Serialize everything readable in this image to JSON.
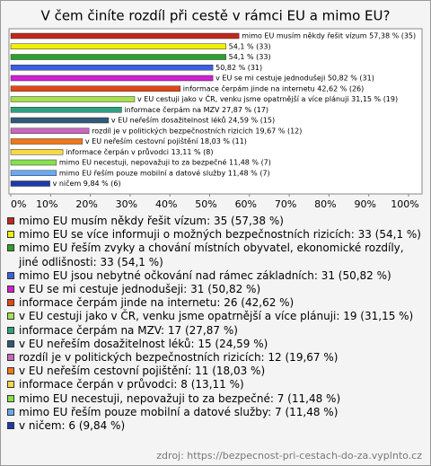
{
  "chart_data": {
    "type": "barh",
    "title": "V čem činíte rozdíl při cestě v rámci EU a mimo EU?",
    "values": [
      57.38,
      54.1,
      54.1,
      50.82,
      50.82,
      42.62,
      31.15,
      27.87,
      24.59,
      19.67,
      18.03,
      13.11,
      11.48,
      11.48,
      9.84
    ],
    "value_labels": [
      "mimo EU musím někdy řešit vízum 57,38 % (35)",
      "54,1 % (33)",
      "54,1 % (33)",
      "50,82 % (31)",
      "v EU se mi cestuje jednodušeji 50,82 % (31)",
      "informace čerpám jinde na internetu 42,62 % (26)",
      "v EU cestuji jako v ČR, venku jsme opatrnější a více plánuji 31,15 % (19)",
      "informace čerpám na MZV 27,87 % (17)",
      "v EU neřeším dosažitelnost léků 24,59 % (15)",
      "rozdíl je v politických bezpečnostních rizicích 19,67 % (12)",
      "v EU neřeším cestovní pojištění 18,03 % (11)",
      "informace čerpán v průvodci 13,11 % (8)",
      "mimo EU necestuji, nepovažuji to za bezpečné 11,48 % (7)",
      "mimo EU řeším pouze mobilní a datové služby 11,48 % (7)",
      "v ničem 9,84 % (6)"
    ],
    "colors": [
      "#c0281c",
      "#f0f000",
      "#2ca02c",
      "#3a5fe0",
      "#d020d0",
      "#e04818",
      "#a8e050",
      "#30a080",
      "#305a78",
      "#c868c0",
      "#f07818",
      "#f8d848",
      "#88e050",
      "#6aa8f0",
      "#2038a8"
    ],
    "xlim": [
      0,
      100
    ],
    "xticks": [
      {
        "value": 0,
        "label": "0%"
      },
      {
        "value": 10,
        "label": "10%"
      },
      {
        "value": 20,
        "label": "20%"
      },
      {
        "value": 30,
        "label": "30%"
      },
      {
        "value": 40,
        "label": "40%"
      },
      {
        "value": 50,
        "label": "50%"
      },
      {
        "value": 60,
        "label": "60%"
      },
      {
        "value": 70,
        "label": "70%"
      },
      {
        "value": 80,
        "label": "80%"
      },
      {
        "value": 90,
        "label": "90%"
      },
      {
        "value": 100,
        "label": "100%"
      }
    ],
    "legend": [
      "mimo EU musím někdy řešit vízum: 35 (57,38 %)",
      "mimo EU se více informuji o možných bezpečnostních rizicích: 33 (54,1 %)",
      "mimo EU řeším zvyky a chování místních obyvatel, ekonomické rozdíly, jiné odlišnosti: 33 (54,1 %)",
      "mimo EU jsou nebytné očkování nad rámec základních: 31 (50,82 %)",
      "v EU se mi cestuje jednodušeji: 31 (50,82 %)",
      "informace čerpám jinde na internetu: 26 (42,62 %)",
      "v EU cestuji jako v ČR, venku jsme opatrnější a více plánuji: 19 (31,15 %)",
      "informace čerpám na MZV: 17 (27,87 %)",
      "v EU neřeším dosažitelnost léků: 15 (24,59 %)",
      "rozdíl je v politických bezpečnostních rizicích: 12 (19,67 %)",
      "v EU neřeším cestovní pojištění: 11 (18,03 %)",
      "informace čerpán v průvodci: 8 (13,11 %)",
      "mimo EU necestuji, nepovažuji to za bezpečné: 7 (11,48 %)",
      "mimo EU řeším pouze mobilní a datové služby: 7 (11,48 %)",
      "v ničem: 6 (9,84 %)"
    ],
    "source": "zdroj: https://bezpecnost-pri-cestach-do-za.vyplnto.cz"
  }
}
